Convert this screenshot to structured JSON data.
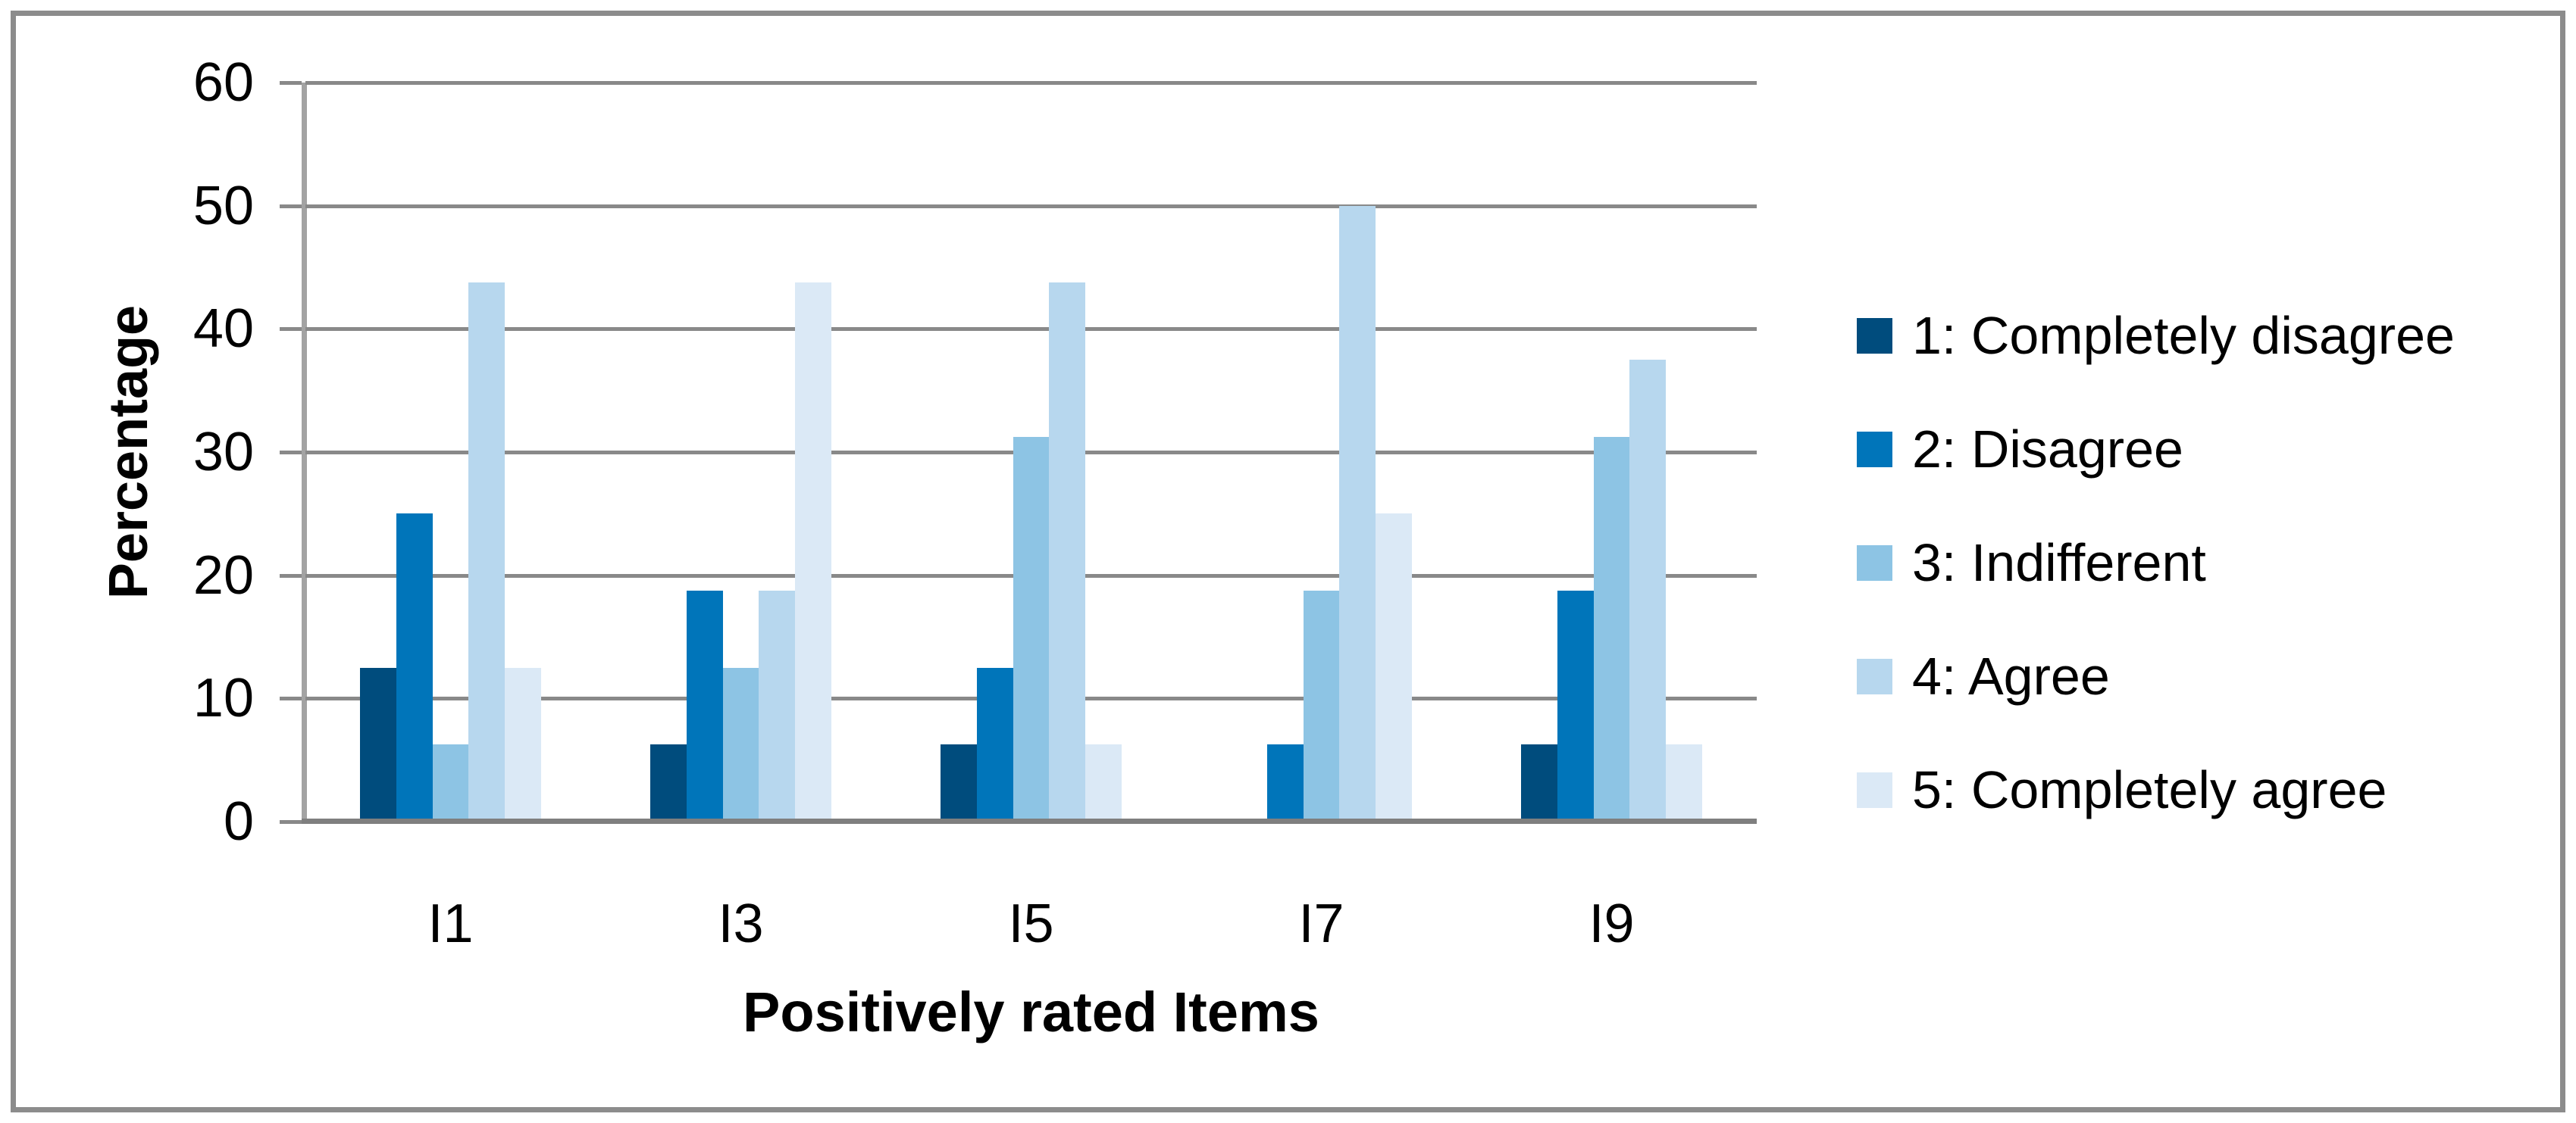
{
  "figure": {
    "background": "#ffffff",
    "border_color": "#8c8c8c"
  },
  "chart_data": {
    "type": "bar",
    "title": "",
    "xlabel": "Positively rated Items",
    "ylabel": "Percentage",
    "categories": [
      "I1",
      "I3",
      "I5",
      "I7",
      "I9"
    ],
    "series": [
      {
        "name": "1: Completely disagree",
        "color": "#004c7d",
        "values": [
          12.5,
          6.25,
          6.25,
          0,
          6.25
        ]
      },
      {
        "name": "2: Disagree",
        "color": "#0075ba",
        "values": [
          25,
          18.75,
          12.5,
          6.25,
          18.75
        ]
      },
      {
        "name": "3: Indifferent",
        "color": "#8dc4e4",
        "values": [
          6.25,
          12.5,
          31.25,
          18.75,
          31.25
        ]
      },
      {
        "name": "4: Agree",
        "color": "#b7d7ee",
        "values": [
          43.75,
          18.75,
          43.75,
          50,
          37.5
        ]
      },
      {
        "name": "5: Completely agree",
        "color": "#dbe9f6",
        "values": [
          12.5,
          43.75,
          6.25,
          25,
          6.25
        ]
      }
    ],
    "y_ticks": [
      0,
      10,
      20,
      30,
      40,
      50,
      60
    ],
    "ylim": [
      0,
      60
    ],
    "grid": true,
    "legend_position": "right",
    "gridline_color": "#898989",
    "axis_color": "#7f7f7f"
  }
}
